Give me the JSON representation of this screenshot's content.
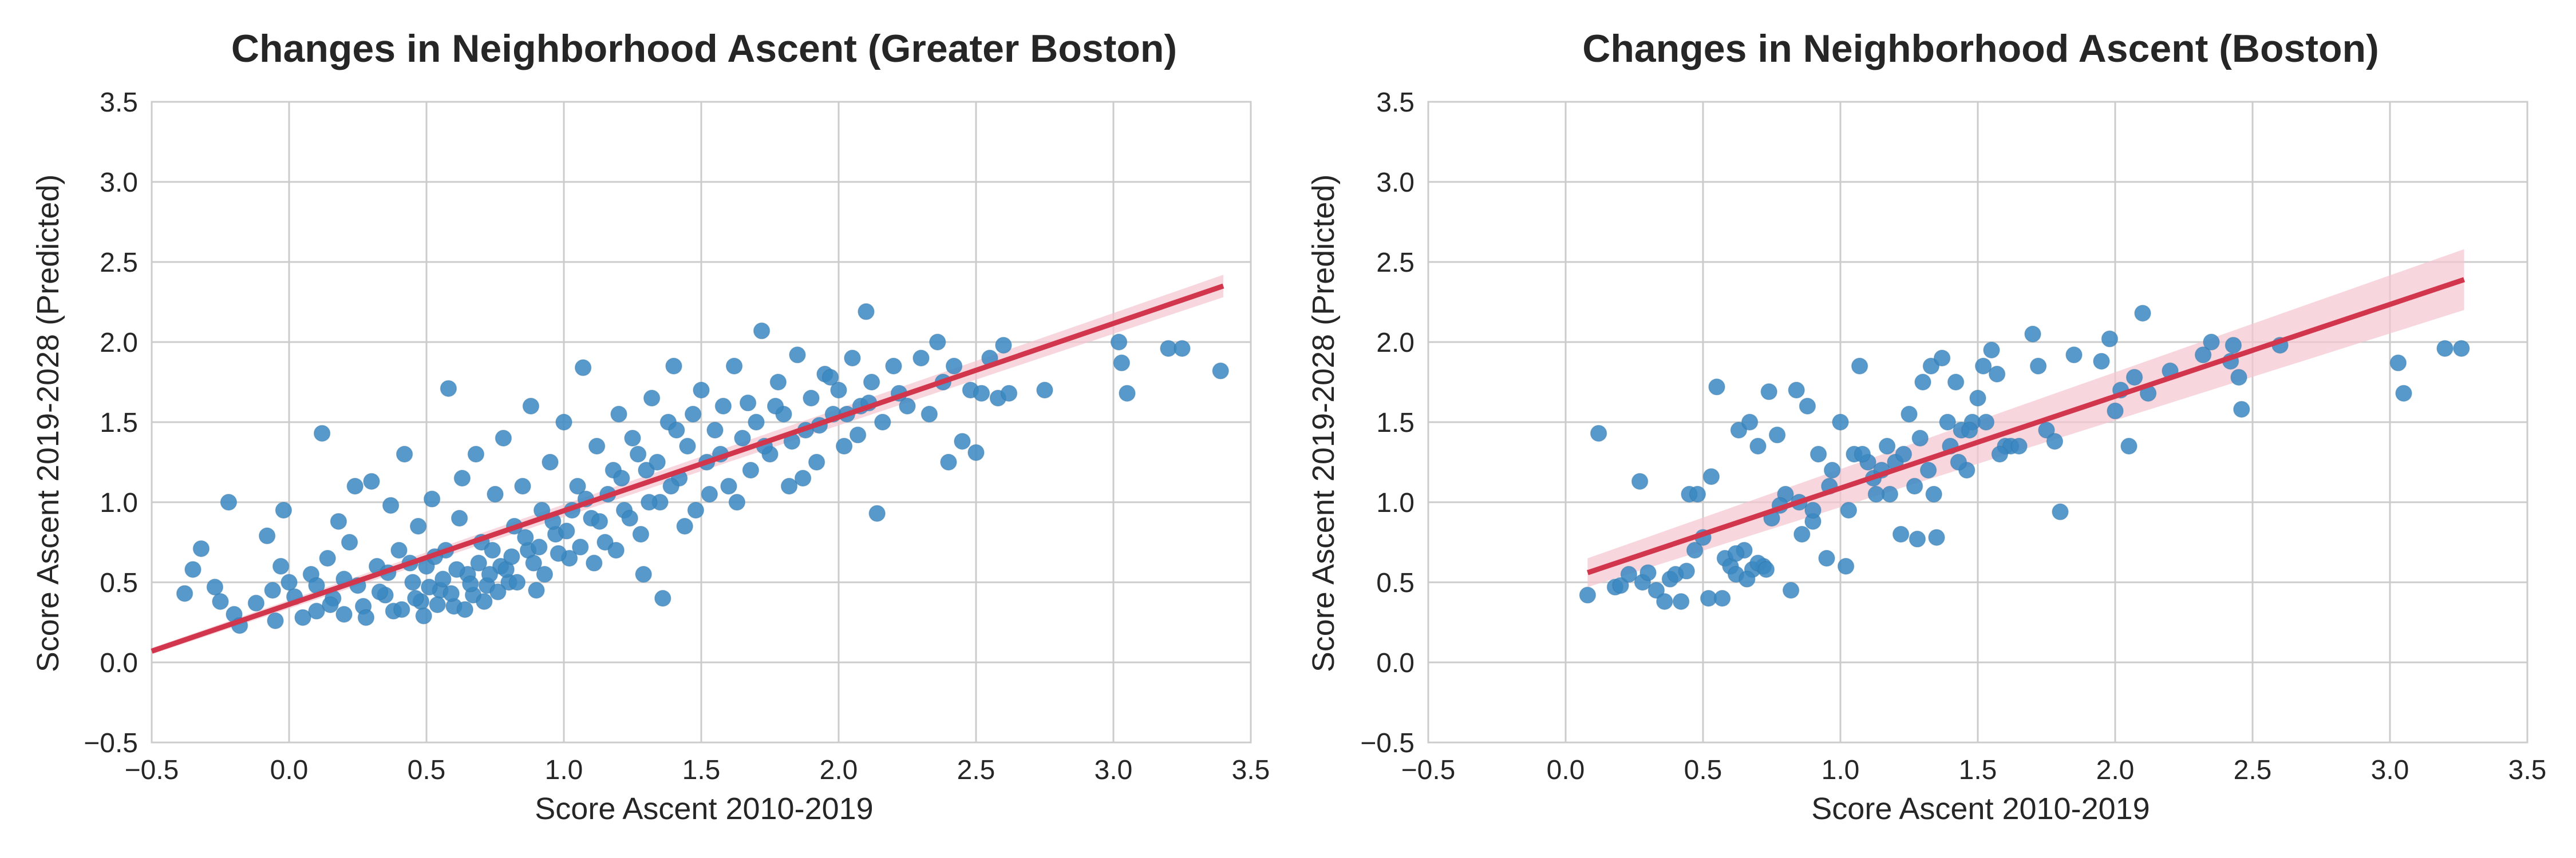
{
  "chart_data": [
    {
      "type": "scatter",
      "title": "Changes in Neighborhood Ascent (Greater Boston)",
      "xlabel": "Score Ascent 2010-2019",
      "ylabel": "Score Ascent 2019-2028 (Predicted)",
      "xlim": [
        -0.5,
        3.5
      ],
      "ylim": [
        -0.5,
        3.5
      ],
      "xticks": [
        "−0.5",
        "0.0",
        "0.5",
        "1.0",
        "1.5",
        "2.0",
        "2.5",
        "3.0",
        "3.5"
      ],
      "yticks": [
        "−0.5",
        "0.0",
        "0.5",
        "1.0",
        "1.5",
        "2.0",
        "2.5",
        "3.0",
        "3.5"
      ],
      "grid": true,
      "point_color": "#3a87c2",
      "regression": {
        "x_range": [
          -0.5,
          3.4
        ],
        "y_range": [
          0.07,
          2.35
        ],
        "color": "#d1364d",
        "band_color": "#f4c6cf",
        "band_half_width_start": 0.02,
        "band_half_width_end": 0.07
      },
      "points": [
        [
          -0.38,
          0.43
        ],
        [
          -0.35,
          0.58
        ],
        [
          -0.32,
          0.71
        ],
        [
          -0.27,
          0.47
        ],
        [
          -0.25,
          0.38
        ],
        [
          -0.22,
          1.0
        ],
        [
          -0.2,
          0.3
        ],
        [
          -0.18,
          0.23
        ],
        [
          -0.12,
          0.37
        ],
        [
          -0.08,
          0.79
        ],
        [
          -0.06,
          0.45
        ],
        [
          -0.05,
          0.26
        ],
        [
          -0.03,
          0.6
        ],
        [
          -0.02,
          0.95
        ],
        [
          0.0,
          0.5
        ],
        [
          0.02,
          0.41
        ],
        [
          0.05,
          0.28
        ],
        [
          0.08,
          0.55
        ],
        [
          0.1,
          0.32
        ],
        [
          0.12,
          1.43
        ],
        [
          0.14,
          0.65
        ],
        [
          0.16,
          0.4
        ],
        [
          0.18,
          0.88
        ],
        [
          0.2,
          0.3
        ],
        [
          0.22,
          0.75
        ],
        [
          0.24,
          1.1
        ],
        [
          0.25,
          0.48
        ],
        [
          0.27,
          0.35
        ],
        [
          0.3,
          1.13
        ],
        [
          0.32,
          0.6
        ],
        [
          0.35,
          0.42
        ],
        [
          0.37,
          0.98
        ],
        [
          0.38,
          0.32
        ],
        [
          0.4,
          0.7
        ],
        [
          0.42,
          1.3
        ],
        [
          0.45,
          0.5
        ],
        [
          0.47,
          0.85
        ],
        [
          0.48,
          0.38
        ],
        [
          0.5,
          0.6
        ],
        [
          0.52,
          1.02
        ],
        [
          0.55,
          0.45
        ],
        [
          0.57,
          0.7
        ],
        [
          0.58,
          1.71
        ],
        [
          0.6,
          0.35
        ],
        [
          0.62,
          0.9
        ],
        [
          0.63,
          1.15
        ],
        [
          0.65,
          0.55
        ],
        [
          0.67,
          0.42
        ],
        [
          0.68,
          1.3
        ],
        [
          0.7,
          0.75
        ],
        [
          0.72,
          0.48
        ],
        [
          0.75,
          1.05
        ],
        [
          0.77,
          0.6
        ],
        [
          0.78,
          1.4
        ],
        [
          0.8,
          0.5
        ],
        [
          0.82,
          0.85
        ],
        [
          0.85,
          1.1
        ],
        [
          0.87,
          0.7
        ],
        [
          0.88,
          1.6
        ],
        [
          0.9,
          0.45
        ],
        [
          0.92,
          0.95
        ],
        [
          0.95,
          1.25
        ],
        [
          0.97,
          0.8
        ],
        [
          1.0,
          1.5
        ],
        [
          1.02,
          0.65
        ],
        [
          1.05,
          1.1
        ],
        [
          1.07,
          1.84
        ],
        [
          1.1,
          0.9
        ],
        [
          1.12,
          1.35
        ],
        [
          1.15,
          0.75
        ],
        [
          1.18,
          1.2
        ],
        [
          1.2,
          1.55
        ],
        [
          1.22,
          0.95
        ],
        [
          1.25,
          1.4
        ],
        [
          1.28,
          0.8
        ],
        [
          1.3,
          1.2
        ],
        [
          1.32,
          1.65
        ],
        [
          1.35,
          1.0
        ],
        [
          1.38,
          1.5
        ],
        [
          1.4,
          1.85
        ],
        [
          1.42,
          1.15
        ],
        [
          1.45,
          1.35
        ],
        [
          1.48,
          0.95
        ],
        [
          1.5,
          1.7
        ],
        [
          1.52,
          1.25
        ],
        [
          1.55,
          1.45
        ],
        [
          1.58,
          1.6
        ],
        [
          1.6,
          1.1
        ],
        [
          1.62,
          1.85
        ],
        [
          1.65,
          1.4
        ],
        [
          1.68,
          1.2
        ],
        [
          1.7,
          1.5
        ],
        [
          1.72,
          2.07
        ],
        [
          1.75,
          1.3
        ],
        [
          1.78,
          1.75
        ],
        [
          1.8,
          1.55
        ],
        [
          1.82,
          1.1
        ],
        [
          1.85,
          1.92
        ],
        [
          1.88,
          1.45
        ],
        [
          1.9,
          1.65
        ],
        [
          1.92,
          1.25
        ],
        [
          1.95,
          1.8
        ],
        [
          1.98,
          1.55
        ],
        [
          2.0,
          1.7
        ],
        [
          2.02,
          1.35
        ],
        [
          2.05,
          1.9
        ],
        [
          2.08,
          1.6
        ],
        [
          2.1,
          2.19
        ],
        [
          2.12,
          1.75
        ],
        [
          2.14,
          0.93
        ],
        [
          2.16,
          1.5
        ],
        [
          2.2,
          1.85
        ],
        [
          2.22,
          1.68
        ],
        [
          2.25,
          1.6
        ],
        [
          2.3,
          1.9
        ],
        [
          2.33,
          1.55
        ],
        [
          2.36,
          2.0
        ],
        [
          2.38,
          1.75
        ],
        [
          2.4,
          1.25
        ],
        [
          2.42,
          1.85
        ],
        [
          2.45,
          1.38
        ],
        [
          2.48,
          1.7
        ],
        [
          2.5,
          1.31
        ],
        [
          2.52,
          1.68
        ],
        [
          2.55,
          1.9
        ],
        [
          2.58,
          1.65
        ],
        [
          2.6,
          1.98
        ],
        [
          2.62,
          1.68
        ],
        [
          2.75,
          1.7
        ],
        [
          3.02,
          2.0
        ],
        [
          3.03,
          1.87
        ],
        [
          3.05,
          1.68
        ],
        [
          3.2,
          1.96
        ],
        [
          3.25,
          1.96
        ],
        [
          3.39,
          1.82
        ],
        [
          0.1,
          0.48
        ],
        [
          0.15,
          0.36
        ],
        [
          0.2,
          0.52
        ],
        [
          0.28,
          0.28
        ],
        [
          0.33,
          0.44
        ],
        [
          0.36,
          0.56
        ],
        [
          0.41,
          0.33
        ],
        [
          0.44,
          0.62
        ],
        [
          0.46,
          0.4
        ],
        [
          0.49,
          0.29
        ],
        [
          0.51,
          0.47
        ],
        [
          0.53,
          0.66
        ],
        [
          0.54,
          0.36
        ],
        [
          0.56,
          0.52
        ],
        [
          0.59,
          0.43
        ],
        [
          0.61,
          0.58
        ],
        [
          0.64,
          0.33
        ],
        [
          0.66,
          0.49
        ],
        [
          0.69,
          0.62
        ],
        [
          0.71,
          0.38
        ],
        [
          0.73,
          0.55
        ],
        [
          0.74,
          0.7
        ],
        [
          0.76,
          0.44
        ],
        [
          0.79,
          0.58
        ],
        [
          0.81,
          0.66
        ],
        [
          0.83,
          0.5
        ],
        [
          0.86,
          0.78
        ],
        [
          0.89,
          0.62
        ],
        [
          0.91,
          0.72
        ],
        [
          0.93,
          0.55
        ],
        [
          0.96,
          0.88
        ],
        [
          0.98,
          0.68
        ],
        [
          1.01,
          0.82
        ],
        [
          1.03,
          0.95
        ],
        [
          1.06,
          0.72
        ],
        [
          1.08,
          1.02
        ],
        [
          1.11,
          0.62
        ],
        [
          1.13,
          0.88
        ],
        [
          1.16,
          1.05
        ],
        [
          1.19,
          0.7
        ],
        [
          1.21,
          1.15
        ],
        [
          1.24,
          0.9
        ],
        [
          1.27,
          1.3
        ],
        [
          1.29,
          0.55
        ],
        [
          1.31,
          1.0
        ],
        [
          1.34,
          1.25
        ],
        [
          1.36,
          0.4
        ],
        [
          1.39,
          1.1
        ],
        [
          1.41,
          1.45
        ],
        [
          1.44,
          0.85
        ],
        [
          1.47,
          1.55
        ],
        [
          1.53,
          1.05
        ],
        [
          1.57,
          1.3
        ],
        [
          1.63,
          1.0
        ],
        [
          1.67,
          1.62
        ],
        [
          1.73,
          1.35
        ],
        [
          1.77,
          1.6
        ],
        [
          1.83,
          1.38
        ],
        [
          1.87,
          1.15
        ],
        [
          1.93,
          1.48
        ],
        [
          1.97,
          1.78
        ],
        [
          2.03,
          1.55
        ],
        [
          2.07,
          1.42
        ],
        [
          2.11,
          1.62
        ]
      ]
    },
    {
      "type": "scatter",
      "title": "Changes in Neighborhood Ascent (Boston)",
      "xlabel": "Score Ascent 2010-2019",
      "ylabel": "Score Ascent 2019-2028 (Predicted)",
      "xlim": [
        -0.5,
        3.5
      ],
      "ylim": [
        -0.5,
        3.5
      ],
      "xticks": [
        "−0.5",
        "0.0",
        "0.5",
        "1.0",
        "1.5",
        "2.0",
        "2.5",
        "3.0",
        "3.5"
      ],
      "yticks": [
        "−0.5",
        "0.0",
        "0.5",
        "1.0",
        "1.5",
        "2.0",
        "2.5",
        "3.0",
        "3.5"
      ],
      "grid": true,
      "point_color": "#3a87c2",
      "regression": {
        "x_range": [
          0.08,
          3.27
        ],
        "y_range": [
          0.56,
          2.39
        ],
        "color": "#d1364d",
        "band_color": "#f4c6cf",
        "band_half_width_start": 0.09,
        "band_half_width_end": 0.19
      },
      "points": [
        [
          0.08,
          0.42
        ],
        [
          0.12,
          1.43
        ],
        [
          0.18,
          0.47
        ],
        [
          0.2,
          0.48
        ],
        [
          0.23,
          0.55
        ],
        [
          0.27,
          1.13
        ],
        [
          0.28,
          0.5
        ],
        [
          0.3,
          0.56
        ],
        [
          0.33,
          0.45
        ],
        [
          0.36,
          0.38
        ],
        [
          0.38,
          0.52
        ],
        [
          0.4,
          0.55
        ],
        [
          0.42,
          0.38
        ],
        [
          0.44,
          0.57
        ],
        [
          0.45,
          1.05
        ],
        [
          0.47,
          0.7
        ],
        [
          0.48,
          1.05
        ],
        [
          0.5,
          0.78
        ],
        [
          0.52,
          0.4
        ],
        [
          0.53,
          1.16
        ],
        [
          0.55,
          1.72
        ],
        [
          0.57,
          0.4
        ],
        [
          0.58,
          0.65
        ],
        [
          0.6,
          0.6
        ],
        [
          0.62,
          0.55
        ],
        [
          0.63,
          1.45
        ],
        [
          0.65,
          0.7
        ],
        [
          0.67,
          1.5
        ],
        [
          0.68,
          0.58
        ],
        [
          0.7,
          1.35
        ],
        [
          0.72,
          0.6
        ],
        [
          0.74,
          1.69
        ],
        [
          0.75,
          0.9
        ],
        [
          0.77,
          1.42
        ],
        [
          0.8,
          1.05
        ],
        [
          0.82,
          0.45
        ],
        [
          0.84,
          1.7
        ],
        [
          0.86,
          0.8
        ],
        [
          0.88,
          1.6
        ],
        [
          0.9,
          0.88
        ],
        [
          0.92,
          1.3
        ],
        [
          0.95,
          0.65
        ],
        [
          0.97,
          1.2
        ],
        [
          1.0,
          1.5
        ],
        [
          1.02,
          0.6
        ],
        [
          1.05,
          1.3
        ],
        [
          1.07,
          1.85
        ],
        [
          1.1,
          1.25
        ],
        [
          1.12,
          1.15
        ],
        [
          1.15,
          1.2
        ],
        [
          1.18,
          1.05
        ],
        [
          1.2,
          1.25
        ],
        [
          1.22,
          0.8
        ],
        [
          1.25,
          1.55
        ],
        [
          1.27,
          1.1
        ],
        [
          1.28,
          0.77
        ],
        [
          1.3,
          1.75
        ],
        [
          1.32,
          1.2
        ],
        [
          1.33,
          1.85
        ],
        [
          1.35,
          0.78
        ],
        [
          1.37,
          1.9
        ],
        [
          1.4,
          1.35
        ],
        [
          1.42,
          1.75
        ],
        [
          1.44,
          1.45
        ],
        [
          1.46,
          1.2
        ],
        [
          1.48,
          1.5
        ],
        [
          1.5,
          1.65
        ],
        [
          1.52,
          1.85
        ],
        [
          1.55,
          1.95
        ],
        [
          1.57,
          1.8
        ],
        [
          1.6,
          1.35
        ],
        [
          1.62,
          1.35
        ],
        [
          1.65,
          1.35
        ],
        [
          1.7,
          2.05
        ],
        [
          1.72,
          1.85
        ],
        [
          1.75,
          1.45
        ],
        [
          1.78,
          1.38
        ],
        [
          1.8,
          0.94
        ],
        [
          1.85,
          1.92
        ],
        [
          1.95,
          1.88
        ],
        [
          1.98,
          2.02
        ],
        [
          2.0,
          1.57
        ],
        [
          2.02,
          1.7
        ],
        [
          2.05,
          1.35
        ],
        [
          2.07,
          1.78
        ],
        [
          2.1,
          2.18
        ],
        [
          2.12,
          1.68
        ],
        [
          2.2,
          1.82
        ],
        [
          2.32,
          1.92
        ],
        [
          2.35,
          2.0
        ],
        [
          2.42,
          1.88
        ],
        [
          2.43,
          1.98
        ],
        [
          2.45,
          1.78
        ],
        [
          2.46,
          1.58
        ],
        [
          2.6,
          1.98
        ],
        [
          3.03,
          1.87
        ],
        [
          3.05,
          1.68
        ],
        [
          3.2,
          1.96
        ],
        [
          3.26,
          1.96
        ],
        [
          0.62,
          0.68
        ],
        [
          0.66,
          0.52
        ],
        [
          0.7,
          0.62
        ],
        [
          0.73,
          0.58
        ],
        [
          0.78,
          0.98
        ],
        [
          0.85,
          1.0
        ],
        [
          0.9,
          0.95
        ],
        [
          0.96,
          1.1
        ],
        [
          1.03,
          0.95
        ],
        [
          1.08,
          1.3
        ],
        [
          1.13,
          1.05
        ],
        [
          1.17,
          1.35
        ],
        [
          1.23,
          1.3
        ],
        [
          1.29,
          1.4
        ],
        [
          1.34,
          1.05
        ],
        [
          1.39,
          1.5
        ],
        [
          1.43,
          1.25
        ],
        [
          1.47,
          1.45
        ],
        [
          1.53,
          1.5
        ],
        [
          1.58,
          1.3
        ]
      ]
    }
  ]
}
